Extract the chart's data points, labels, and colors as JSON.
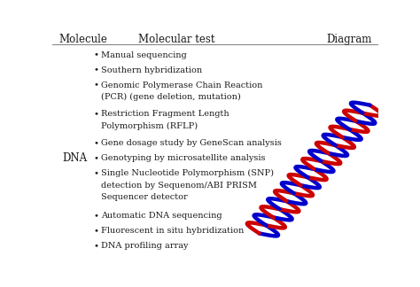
{
  "background_color": "#ffffff",
  "header_line_color": "#888888",
  "col1_header": "Molecule",
  "col2_header": "Molecular test",
  "col3_header": "Diagram",
  "molecule_label": "DNA",
  "bullet_items": [
    "Manual sequencing",
    "Southern hybridization",
    "Genomic Polymerase Chain Reaction\n(PCR) (gene deletion, mutation)",
    "Restriction Fragment Length\nPolymorphism (RFLP)",
    "Gene dosage study by GeneScan analysis",
    "Genotyping by microsatellite analysis",
    "Single Nucleotide Polymorphism (SNP)\ndetection by Sequenom/ABI PRISM\nSequencer detector",
    "Automatic DNA sequencing",
    "Fluorescent in situ hybridization",
    "DNA profiling array"
  ],
  "header_fontsize": 8.5,
  "body_fontsize": 7.0,
  "molecule_fontsize": 8.5,
  "text_color": "#1a1a1a",
  "helix_color1": "#cc0000",
  "helix_color2": "#0000cc"
}
